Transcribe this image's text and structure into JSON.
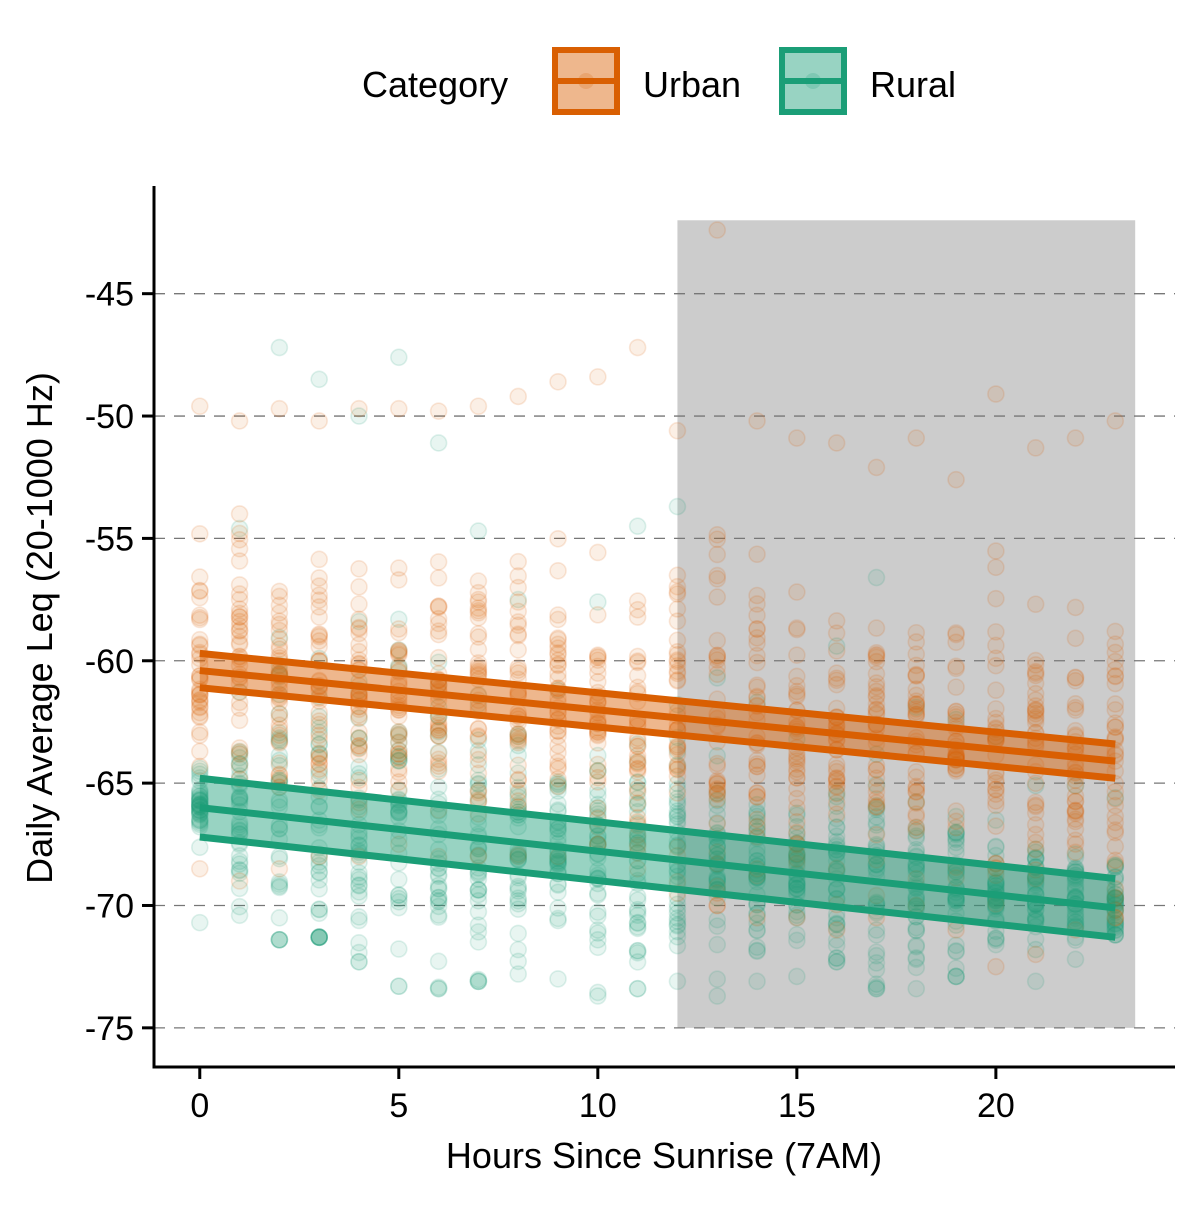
{
  "chart_data": {
    "type": "scatter",
    "title": "",
    "xlabel": "Hours Since Sunrise (7AM)",
    "ylabel": "Daily Average Leq (20-1000 Hz)",
    "xlim": [
      -1.15,
      24.5
    ],
    "ylim": [
      -76.6,
      -40.6
    ],
    "x_ticks": [
      0,
      5,
      10,
      15,
      20
    ],
    "y_ticks": [
      -45,
      -50,
      -55,
      -60,
      -65,
      -70,
      -75
    ],
    "grid": "horizontal dashed",
    "legend": {
      "title": "Category",
      "position": "top",
      "entries": [
        "Urban",
        "Rural"
      ]
    },
    "shaded_region": {
      "x_start": 12,
      "x_end": 23.5,
      "y_start": -75,
      "y_end": -42
    },
    "colors": {
      "Urban": "#d95f02",
      "Rural": "#1b9e77",
      "shade": "#cccccc"
    },
    "series": [
      {
        "name": "Urban",
        "hours": [
          0,
          1,
          2,
          3,
          4,
          5,
          6,
          7,
          8,
          9,
          10,
          11,
          12,
          13,
          14,
          15,
          16,
          17,
          18,
          19,
          20,
          21,
          22,
          23
        ],
        "point_range_low": [
          -68.5,
          -69,
          -68.5,
          -68,
          -68,
          -67.5,
          -68,
          -68,
          -68,
          -68,
          -67.5,
          -68.5,
          -69.5,
          -70,
          -70.5,
          -70.5,
          -71,
          -70.5,
          -70,
          -71,
          -72.5,
          -72,
          -71,
          -70.5
        ],
        "point_range_high": [
          -49.6,
          -50.2,
          -49.7,
          -50.2,
          -49.7,
          -49.7,
          -49.8,
          -49.6,
          -49.2,
          -48.6,
          -48.4,
          -47.2,
          -50.6,
          -42.4,
          -50.2,
          -50.9,
          -51.1,
          -52.1,
          -50.9,
          -52.6,
          -49.1,
          -51.3,
          -50.9,
          -50.2
        ],
        "trend_line": {
          "x": [
            0,
            23
          ],
          "y": [
            -60.4,
            -64.1
          ]
        },
        "ci_low": [
          -61.1,
          -64.8
        ],
        "ci_high": [
          -59.7,
          -63.4
        ]
      },
      {
        "name": "Rural",
        "hours": [
          0,
          1,
          2,
          3,
          4,
          5,
          6,
          7,
          8,
          9,
          10,
          11,
          12,
          13,
          14,
          15,
          16,
          17,
          18,
          19,
          20,
          21,
          22,
          23
        ],
        "point_range_low": [
          -70.7,
          -70.4,
          -71.4,
          -71.3,
          -72.3,
          -73.3,
          -73.4,
          -73.1,
          -72.8,
          -73,
          -73.7,
          -73.4,
          -73.1,
          -73.7,
          -73.1,
          -72.9,
          -72.3,
          -73.4,
          -73.4,
          -72.9,
          -71.6,
          -73.1,
          -72.2,
          -71.2
        ],
        "point_range_high": [
          -64.4,
          -54.6,
          -47.2,
          -48.5,
          -50,
          -47.6,
          -51.1,
          -54.7,
          -57.5,
          -61.2,
          -57.6,
          -54.5,
          -53.7,
          -60.7,
          -61.7,
          -63.2,
          -59.4,
          -56.6,
          -61.9,
          -62.4,
          -63.1,
          -65.1,
          -65.1,
          -65.6
        ],
        "trend_line": {
          "x": [
            0,
            23
          ],
          "y": [
            -66.0,
            -70.1
          ]
        },
        "ci_low": [
          -67.2,
          -71.3
        ],
        "ci_high": [
          -64.8,
          -68.9
        ]
      }
    ]
  }
}
